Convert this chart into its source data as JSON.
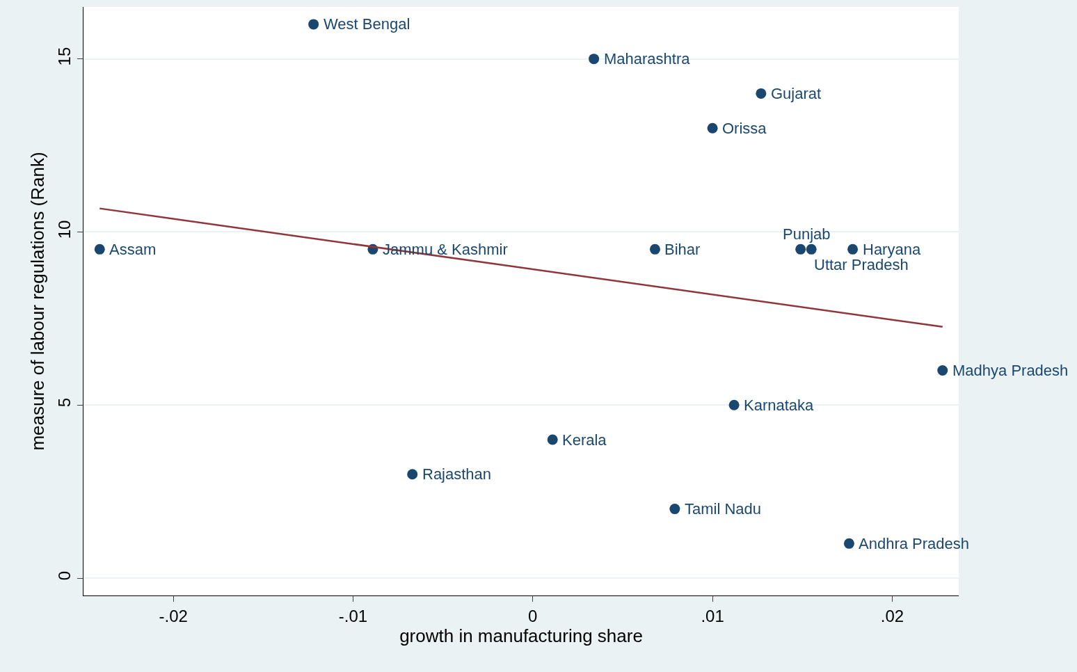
{
  "chart_data": {
    "type": "scatter",
    "xlabel": "growth in manufacturing share",
    "ylabel": "measure of labour regulations (Rank)",
    "xlim": [
      -0.025,
      0.0237
    ],
    "ylim": [
      -0.5,
      16.5
    ],
    "xticks": [
      {
        "value": -0.02,
        "label": "-.02"
      },
      {
        "value": -0.01,
        "label": "-.01"
      },
      0,
      {
        "value": 0.01,
        "label": ".01"
      },
      {
        "value": 0.02,
        "label": ".02"
      }
    ],
    "yticks": [
      0,
      5,
      10,
      15
    ],
    "grid": "y",
    "series": [
      {
        "marker": "circle",
        "color": "#1a476f",
        "x": [
          -0.0241,
          -0.0122,
          0.0034,
          0.0127,
          0.01,
          -0.0089,
          0.0068,
          0.0149,
          0.0155,
          0.0178,
          0.0228,
          0.0112,
          0.0011,
          -0.0067,
          0.0079,
          0.0176
        ],
        "values": [
          9.5,
          16,
          15,
          14,
          13,
          9.5,
          9.5,
          9.5,
          9.5,
          9.5,
          6,
          5,
          4,
          3,
          2,
          1
        ]
      },
      {
        "type": "line",
        "color": "#90353b",
        "x": [
          -0.0241,
          0.0228
        ],
        "values": [
          10.68,
          7.26
        ]
      }
    ],
    "annotations": [
      {
        "text": "Assam",
        "x": -0.0241,
        "y": 9.5
      },
      {
        "text": "West Bengal",
        "x": -0.0122,
        "y": 16
      },
      {
        "text": "Maharashtra",
        "x": 0.0034,
        "y": 15
      },
      {
        "text": "Gujarat",
        "x": 0.0127,
        "y": 14
      },
      {
        "text": "Orissa",
        "x": 0.01,
        "y": 13
      },
      {
        "text": "Jammu & Kashmir",
        "x": -0.0089,
        "y": 9.5
      },
      {
        "text": "Bihar",
        "x": 0.0068,
        "y": 9.5
      },
      {
        "text": "Punjab",
        "x": 0.0149,
        "y": 9.5
      },
      {
        "text": "Uttar Pradesh",
        "x": 0.0155,
        "y": 9.5
      },
      {
        "text": "Haryana",
        "x": 0.0178,
        "y": 9.5
      },
      {
        "text": "Madhya Pradesh",
        "x": 0.0228,
        "y": 6
      },
      {
        "text": "Karnataka",
        "x": 0.0112,
        "y": 5
      },
      {
        "text": "Kerala",
        "x": 0.0011,
        "y": 4
      },
      {
        "text": "Rajasthan",
        "x": -0.0067,
        "y": 3
      },
      {
        "text": "Tamil Nadu",
        "x": 0.0079,
        "y": 2
      },
      {
        "text": "Andhra Pradesh",
        "x": 0.0176,
        "y": 1
      }
    ]
  }
}
